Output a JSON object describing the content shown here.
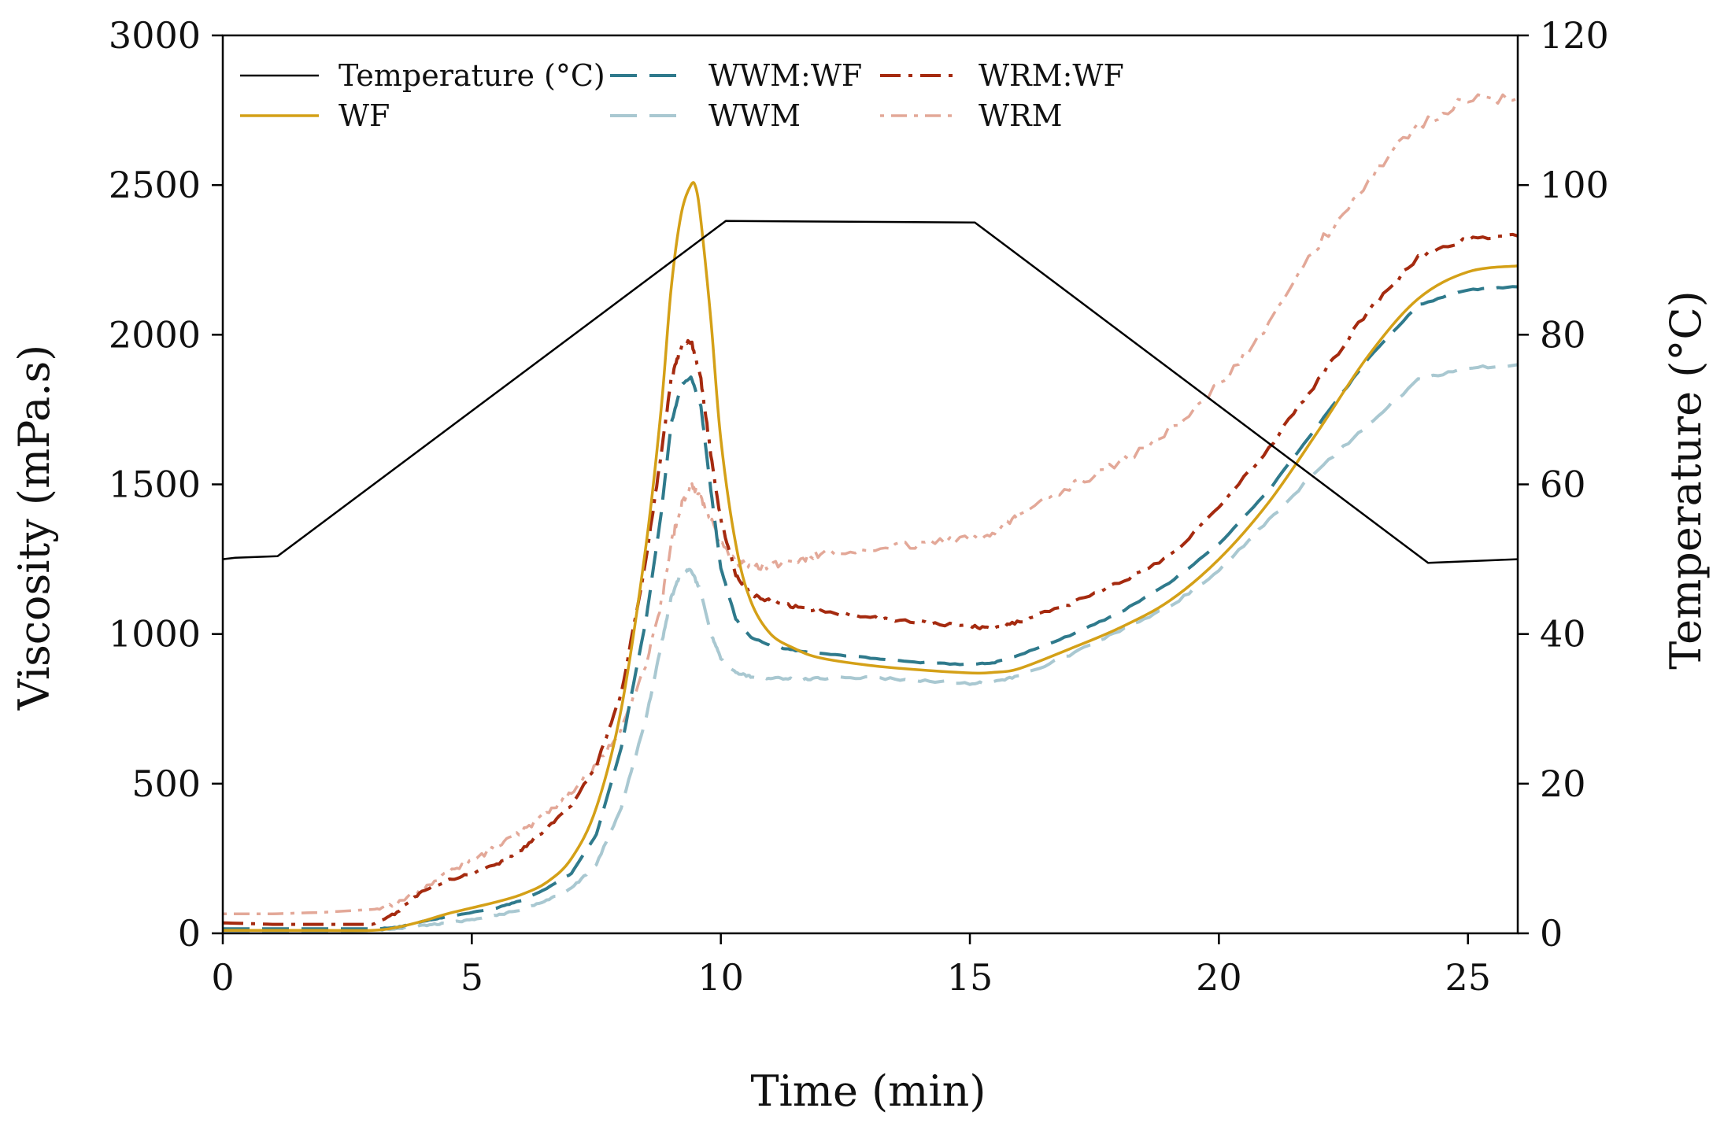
{
  "chart_data": {
    "type": "line",
    "title": "",
    "xlabel": "Time (min)",
    "ylabel": "Viscosity (mPa.s)",
    "y2label": "Temperature (°C)",
    "xlim": [
      0,
      26
    ],
    "ylim": [
      0,
      3000
    ],
    "y2lim": [
      0,
      120
    ],
    "xticks": [
      0,
      5,
      10,
      15,
      20,
      25
    ],
    "yticks": [
      0,
      500,
      1000,
      1500,
      2000,
      2500,
      3000
    ],
    "y2ticks": [
      0,
      20,
      40,
      60,
      80,
      100,
      120
    ],
    "legend_position": "top-left",
    "series": [
      {
        "name": "Temperature (°C)",
        "axis": "right",
        "color": "#000000",
        "style": "solid",
        "x": [
          0,
          0.25,
          1.1,
          10.1,
          15.1,
          24.2,
          26
        ],
        "values": [
          50,
          50.2,
          50.4,
          95.2,
          95,
          49.5,
          50
        ]
      },
      {
        "name": "WF",
        "axis": "left",
        "color": "#D4A017",
        "style": "solid",
        "x": [
          0,
          1,
          2,
          3,
          3.5,
          4,
          4.5,
          5,
          5.5,
          6,
          6.5,
          7,
          7.5,
          8,
          8.5,
          8.8,
          9,
          9.2,
          9.4,
          9.5,
          9.6,
          9.8,
          10,
          10.3,
          10.6,
          11,
          11.5,
          12,
          13,
          14,
          15,
          15.5,
          16,
          17,
          18,
          19,
          20,
          21,
          22,
          23,
          24,
          25,
          26
        ],
        "values": [
          10,
          10,
          10,
          10,
          20,
          40,
          65,
          85,
          105,
          130,
          170,
          250,
          420,
          750,
          1300,
          1750,
          2150,
          2400,
          2500,
          2490,
          2380,
          2050,
          1650,
          1300,
          1110,
          1000,
          950,
          920,
          895,
          880,
          870,
          872,
          885,
          950,
          1020,
          1110,
          1250,
          1440,
          1680,
          1930,
          2120,
          2210,
          2230
        ]
      },
      {
        "name": "WWM:WF",
        "axis": "left",
        "color": "#2F7A8C",
        "style": "dashed",
        "x": [
          0,
          1,
          2,
          3,
          3.5,
          4,
          4.5,
          5,
          5.5,
          6,
          6.5,
          7,
          7.5,
          8,
          8.5,
          8.8,
          9,
          9.2,
          9.4,
          9.6,
          9.8,
          10,
          10.3,
          10.6,
          11,
          11.5,
          12,
          13,
          14,
          15,
          15.5,
          16,
          17,
          18,
          19,
          20,
          21,
          22,
          23,
          24,
          25,
          26
        ],
        "values": [
          15,
          15,
          15,
          15,
          20,
          40,
          55,
          70,
          85,
          110,
          150,
          200,
          330,
          620,
          1050,
          1400,
          1700,
          1830,
          1860,
          1760,
          1480,
          1220,
          1050,
          990,
          960,
          945,
          935,
          920,
          905,
          898,
          905,
          930,
          995,
          1070,
          1170,
          1300,
          1480,
          1700,
          1920,
          2100,
          2150,
          2160
        ]
      },
      {
        "name": "WWM",
        "axis": "left",
        "color": "#A9C8D1",
        "style": "dashed",
        "x": [
          0,
          1,
          2,
          3,
          3.5,
          4,
          4.5,
          5,
          5.5,
          6,
          6.5,
          7,
          7.5,
          8,
          8.5,
          8.8,
          9,
          9.2,
          9.4,
          9.6,
          9.8,
          10,
          10.3,
          10.6,
          11,
          11.5,
          12,
          13,
          14,
          15,
          15.5,
          16,
          17,
          18,
          19,
          20,
          21,
          22,
          23,
          24,
          25,
          26
        ],
        "values": [
          5,
          5,
          5,
          10,
          15,
          25,
          35,
          45,
          60,
          80,
          110,
          150,
          230,
          420,
          720,
          960,
          1120,
          1205,
          1215,
          1140,
          1000,
          920,
          870,
          858,
          852,
          850,
          852,
          855,
          845,
          835,
          840,
          860,
          930,
          1010,
          1090,
          1210,
          1380,
          1550,
          1700,
          1850,
          1890,
          1900
        ]
      },
      {
        "name": "WRM:WF",
        "axis": "left",
        "color": "#A52A0F",
        "style": "dashdot",
        "x": [
          0,
          1,
          2,
          3,
          3.5,
          4,
          4.5,
          5,
          5.5,
          6,
          6.5,
          7,
          7.5,
          8,
          8.5,
          8.8,
          9,
          9.2,
          9.4,
          9.6,
          9.8,
          10,
          10.3,
          10.6,
          11,
          11.5,
          12,
          13,
          14,
          15,
          15.5,
          16,
          17,
          18,
          19,
          20,
          21,
          22,
          23,
          24,
          25,
          26
        ],
        "values": [
          35,
          30,
          30,
          30,
          70,
          140,
          175,
          200,
          230,
          280,
          350,
          430,
          560,
          800,
          1250,
          1600,
          1850,
          1960,
          1980,
          1850,
          1600,
          1380,
          1200,
          1130,
          1110,
          1090,
          1075,
          1055,
          1040,
          1025,
          1020,
          1040,
          1100,
          1170,
          1260,
          1420,
          1620,
          1850,
          2080,
          2260,
          2320,
          2330
        ]
      },
      {
        "name": "WRM",
        "axis": "left",
        "color": "#E3A898",
        "style": "dotted",
        "x": [
          0,
          1,
          2,
          3,
          3.5,
          4,
          4.5,
          5,
          5.5,
          6,
          6.5,
          7,
          7.5,
          8,
          8.5,
          8.8,
          9,
          9.2,
          9.4,
          9.6,
          9.8,
          10,
          10.3,
          10.6,
          11,
          11.5,
          12,
          13,
          14,
          15,
          15.5,
          16,
          17,
          18,
          19,
          20,
          21,
          22,
          23,
          24,
          25,
          26
        ],
        "values": [
          65,
          65,
          70,
          80,
          100,
          150,
          200,
          240,
          290,
          340,
          400,
          470,
          560,
          680,
          900,
          1100,
          1300,
          1430,
          1500,
          1450,
          1380,
          1300,
          1240,
          1225,
          1230,
          1250,
          1265,
          1285,
          1300,
          1320,
          1340,
          1400,
          1490,
          1570,
          1680,
          1830,
          2040,
          2300,
          2520,
          2700,
          2790,
          2790
        ]
      }
    ]
  }
}
